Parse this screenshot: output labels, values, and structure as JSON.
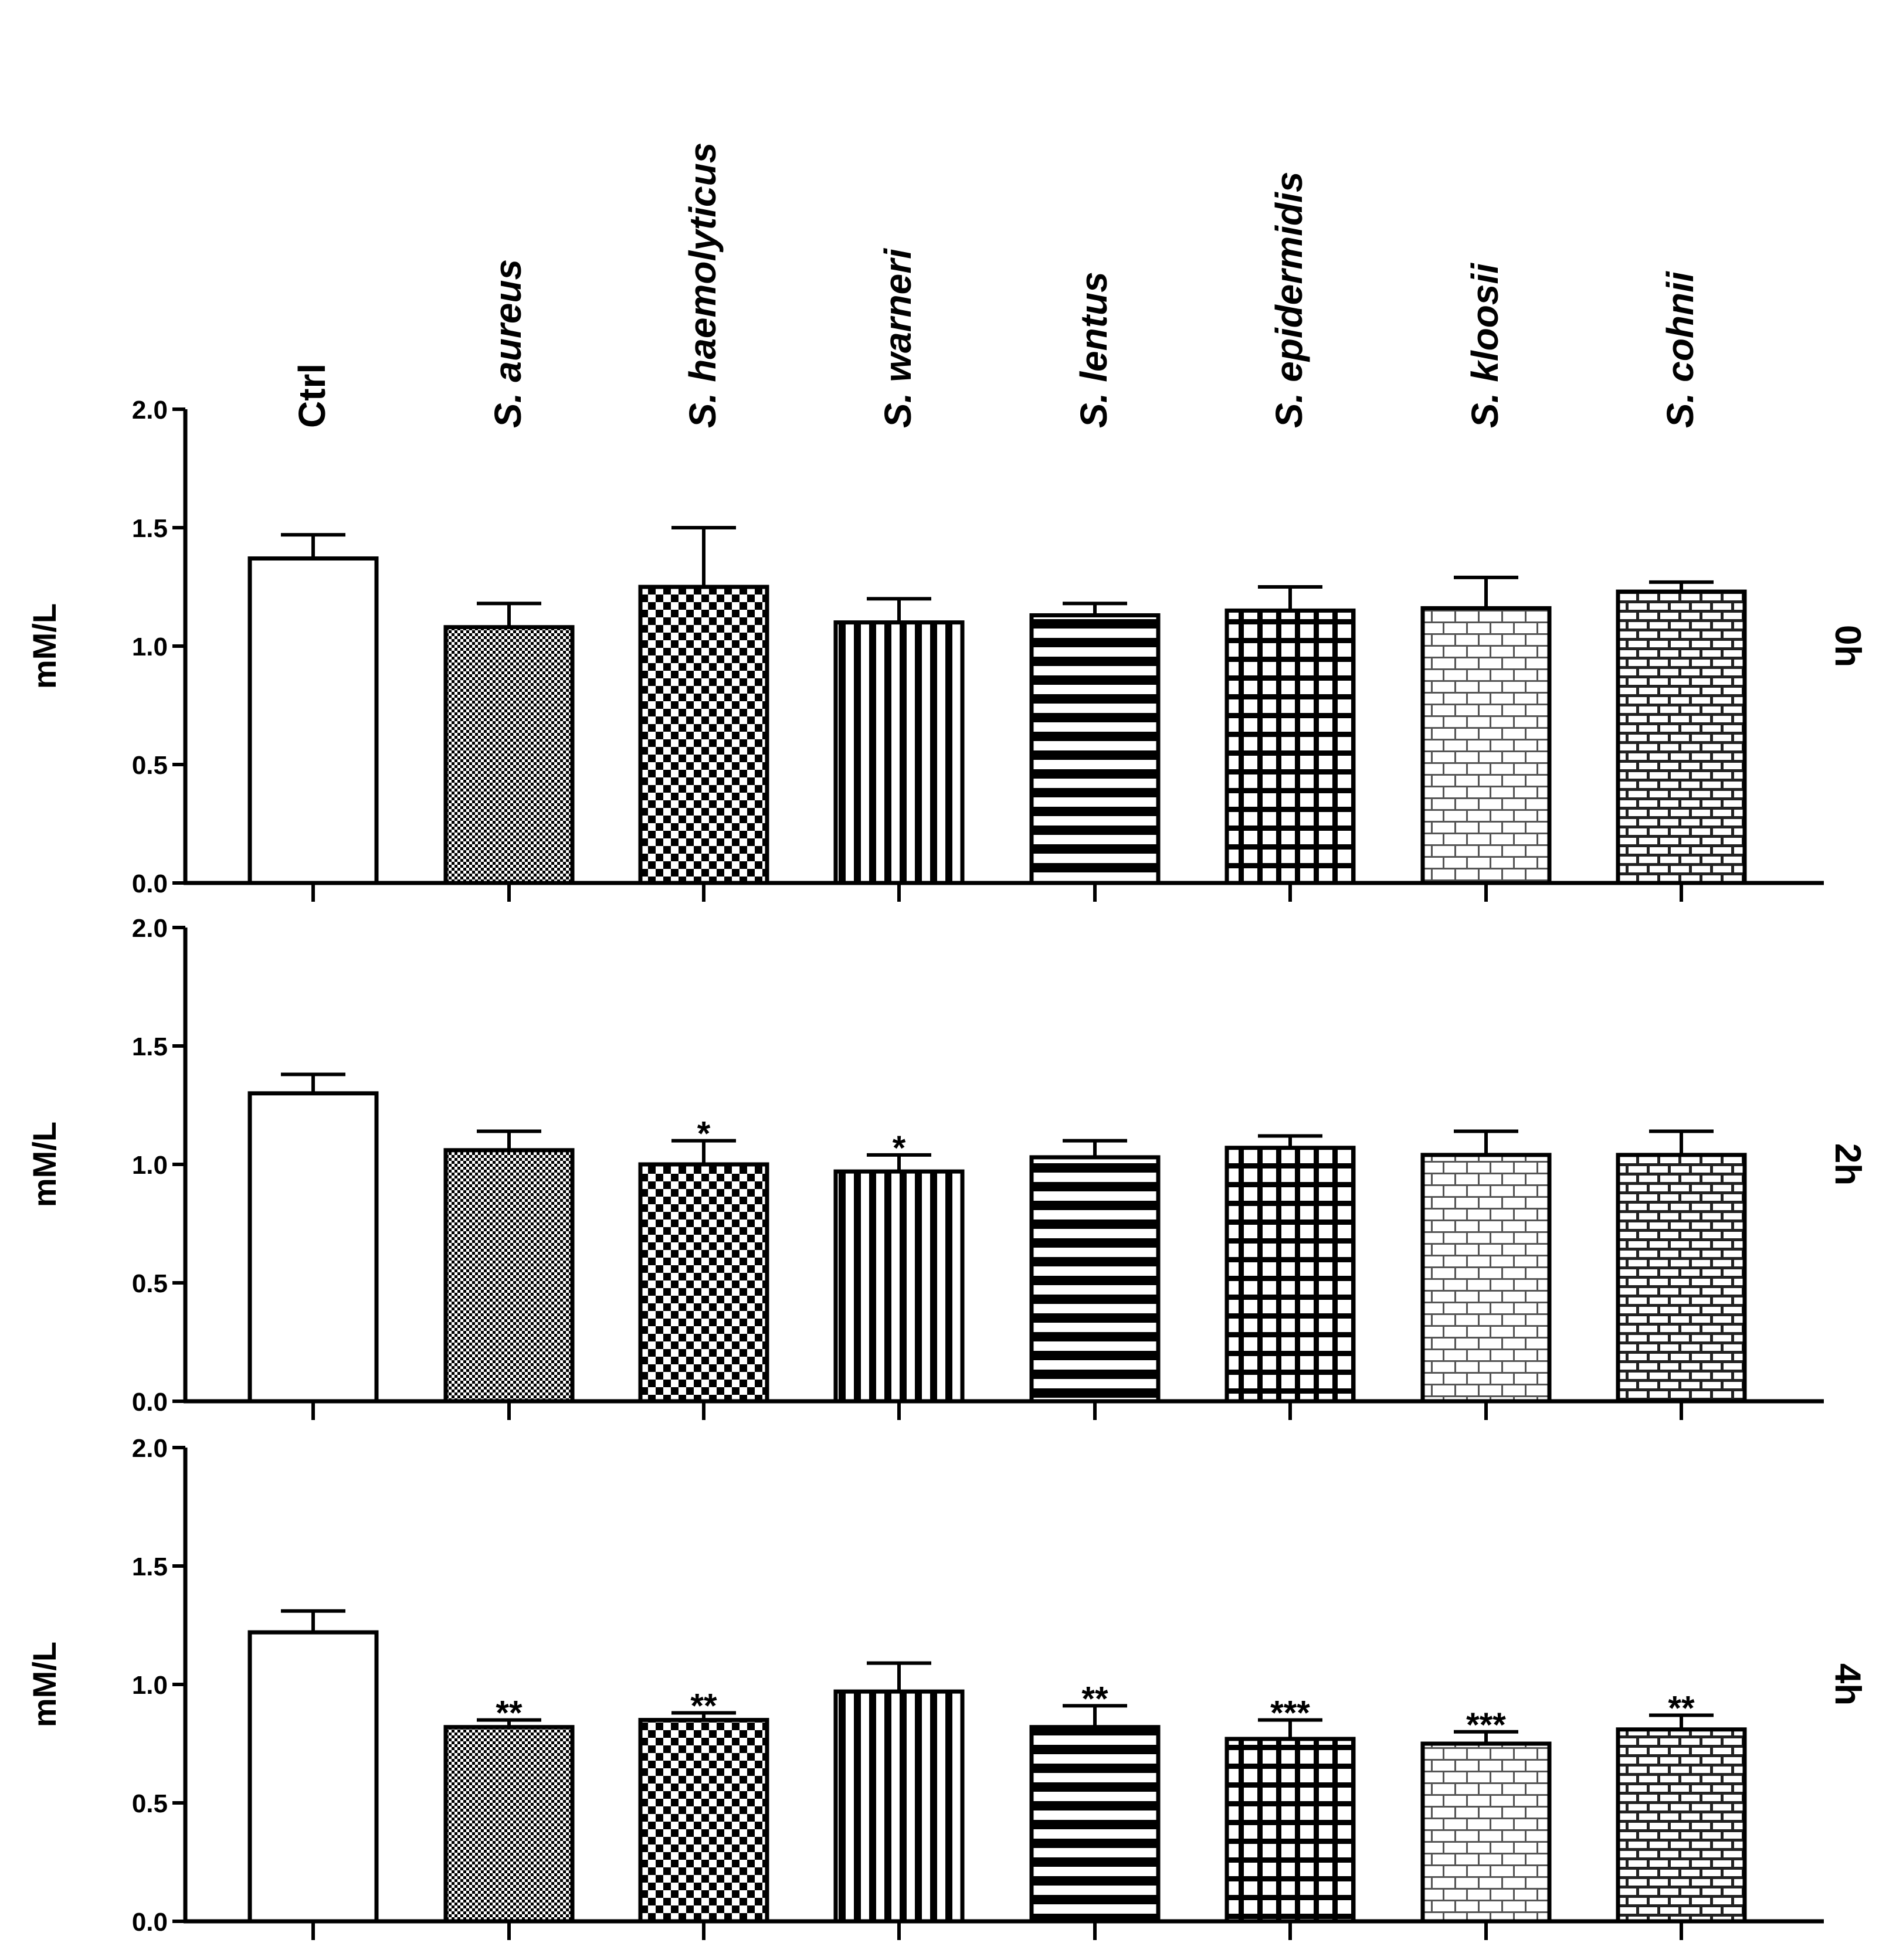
{
  "chart_data": {
    "type": "bar",
    "categories": [
      "Ctrl",
      "S. aureus",
      "S. haemolyticus",
      "S. warneri",
      "S. lentus",
      "S. epidermidis",
      "S. kloosii",
      "S. cohnii"
    ],
    "category_style": [
      "normal",
      "italic",
      "italic",
      "italic",
      "italic",
      "italic",
      "italic",
      "italic"
    ],
    "ylim": [
      0,
      2.0
    ],
    "yticks": [
      "0.0",
      "0.5",
      "1.0",
      "1.5",
      "2.0"
    ],
    "ylabel": "mM/L",
    "panels": [
      {
        "label": "0h",
        "values": [
          1.37,
          1.08,
          1.25,
          1.1,
          1.13,
          1.15,
          1.16,
          1.23
        ],
        "errors": [
          0.1,
          0.1,
          0.25,
          0.1,
          0.05,
          0.1,
          0.13,
          0.04
        ],
        "significance": [
          "",
          "",
          "",
          "",
          "",
          "",
          "",
          ""
        ]
      },
      {
        "label": "2h",
        "values": [
          1.3,
          1.06,
          1.0,
          0.97,
          1.03,
          1.07,
          1.04,
          1.04
        ],
        "errors": [
          0.08,
          0.08,
          0.1,
          0.07,
          0.07,
          0.05,
          0.1,
          0.1
        ],
        "significance": [
          "",
          "",
          "*",
          "*",
          "",
          "",
          "",
          ""
        ]
      },
      {
        "label": "4h",
        "values": [
          1.22,
          0.82,
          0.85,
          0.97,
          0.82,
          0.77,
          0.75,
          0.81
        ],
        "errors": [
          0.09,
          0.03,
          0.03,
          0.12,
          0.09,
          0.08,
          0.05,
          0.06
        ],
        "significance": [
          "",
          "**",
          "**",
          "",
          "**",
          "***",
          "***",
          "**"
        ]
      }
    ],
    "patterns": [
      "white",
      "fine-check",
      "checker",
      "vertical-stripes",
      "horizontal-stripes",
      "grid",
      "bricks-light",
      "bricks-dark"
    ]
  }
}
